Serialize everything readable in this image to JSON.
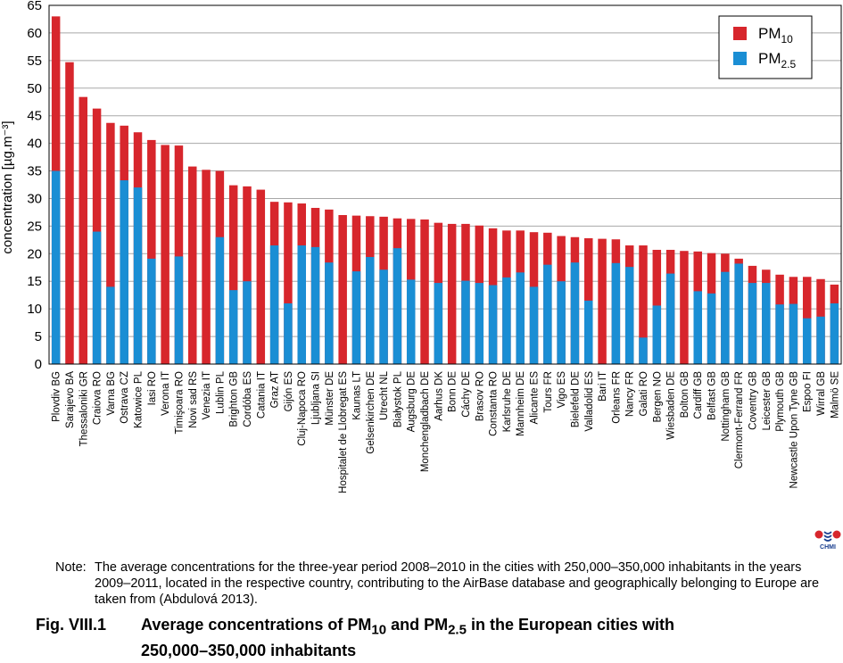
{
  "chart_data": {
    "type": "bar",
    "stacked": false,
    "ylabel": "concentration [µg.m⁻³]",
    "ylim": [
      0,
      65
    ],
    "yticks": [
      0,
      5,
      10,
      15,
      20,
      25,
      30,
      35,
      40,
      45,
      50,
      55,
      60,
      65
    ],
    "grid": true,
    "legend_position": "top-right",
    "categories": [
      "Plovdiv BG",
      "Sarajevo BA",
      "Thessaloniki GR",
      "Craiova RO",
      "Varna BG",
      "Ostrava CZ",
      "Katowice PL",
      "Iasi RO",
      "Verona IT",
      "Timişoara RO",
      "Novi sad RS",
      "Venezia IT",
      "Lublin PL",
      "Brighton GB",
      "Cordóba ES",
      "Catania IT",
      "Graz AT",
      "Gijón ES",
      "Cluj-Napoca RO",
      "Ljubljana SI",
      "Münster DE",
      "Hospitalet de Llobregat ES",
      "Kaunas LT",
      "Gelsenkirchen DE",
      "Utrecht NL",
      "Białystok PL",
      "Augsburg DE",
      "Monchengladbach DE",
      "Aarhus DK",
      "Bonn DE",
      "Cáchy DE",
      "Brasov RO",
      "Constanta RO",
      "Karlsruhe DE",
      "Mannheim DE",
      "Alicante ES",
      "Tours FR",
      "Vigo ES",
      "Bielefeld DE",
      "Valladolid ES",
      "Bari IT",
      "Orleans FR",
      "Nancy FR",
      "Galati RO",
      "Bergen NO",
      "Wiesbaden DE",
      "Bolton GB",
      "Cardiff GB",
      "Belfast GB",
      "Nottingham GB",
      "Clermont-Ferrand FR",
      "Coventry GB",
      "Leicester GB",
      "Plymouth GB",
      "Newcastle Upon Tyne GB",
      "Espoo FI",
      "Wirral GB",
      "Malmö SE"
    ],
    "series": [
      {
        "name": "PM10",
        "color": "#d7262c",
        "values": [
          63.0,
          54.7,
          48.4,
          46.3,
          43.7,
          43.2,
          42.0,
          40.6,
          39.7,
          39.6,
          35.8,
          35.2,
          35.0,
          32.4,
          32.2,
          31.6,
          29.4,
          29.3,
          29.1,
          28.3,
          28.0,
          27.0,
          26.9,
          26.8,
          26.7,
          26.4,
          26.3,
          26.2,
          25.6,
          25.4,
          25.4,
          25.1,
          24.6,
          24.2,
          24.2,
          23.9,
          23.8,
          23.2,
          23.0,
          22.8,
          22.7,
          22.6,
          21.5,
          21.5,
          20.7,
          20.7,
          20.5,
          20.4,
          20.1,
          20.0,
          19.1,
          17.8,
          17.1,
          16.2,
          15.8,
          15.8,
          15.4,
          14.4
        ]
      },
      {
        "name": "PM2.5",
        "color": "#1a8ed4",
        "values": [
          35.0,
          0,
          0,
          24.0,
          14.0,
          33.3,
          32.0,
          19.1,
          0,
          19.5,
          0,
          0,
          23.0,
          13.4,
          15.0,
          0,
          21.5,
          11.0,
          21.5,
          21.2,
          18.4,
          0,
          16.8,
          19.4,
          17.1,
          21.0,
          15.3,
          0,
          14.7,
          0,
          15.1,
          14.7,
          14.3,
          15.7,
          16.6,
          14.0,
          18.0,
          15.0,
          18.4,
          11.5,
          0,
          18.3,
          17.6,
          4.8,
          10.6,
          16.4,
          0,
          13.2,
          12.8,
          16.7,
          18.2,
          14.7,
          14.7,
          10.8,
          10.9,
          8.3,
          8.6,
          11.0
        ]
      }
    ],
    "legend": [
      {
        "main": "PM",
        "sub": "10",
        "color": "#d7262c"
      },
      {
        "main": "PM",
        "sub": "2.5",
        "color": "#1a8ed4"
      }
    ]
  },
  "note": {
    "label": "Note:",
    "text": "The average concentrations for the three-year period 2008–2010 in the cities with 250,000–350,000 inhabitants in the years 2009–2011, located in the respective country, contributing to the AirBase database and geographically belonging to Europe are taken from (Abdulová 2013)."
  },
  "caption": {
    "number": "Fig. VIII.1",
    "part1": "Average concentrations of PM",
    "sub1": "10",
    "part2": " and PM",
    "sub2": "2.5",
    "part3": " in the European cities with",
    "line2": "250,000–350,000 inhabitants"
  },
  "logo": {
    "text": "CHMI"
  }
}
